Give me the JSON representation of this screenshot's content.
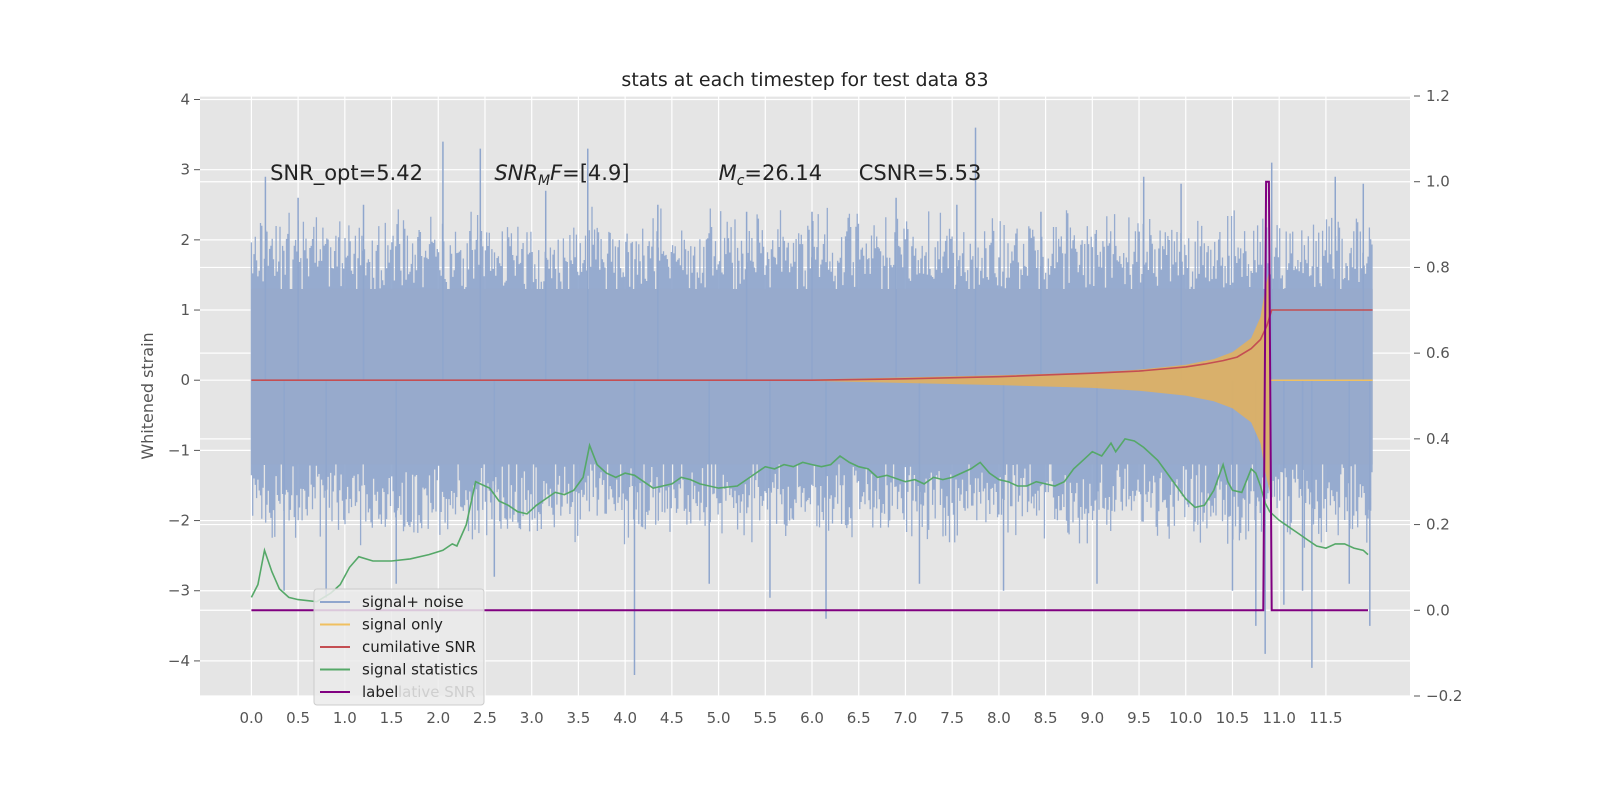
{
  "chart_data": {
    "type": "line",
    "title": "stats at each timestep for test data 83",
    "ylabel": "Whitened strain",
    "xlabel": "",
    "xlim": [
      -0.55,
      12.4
    ],
    "ylim": [
      -4.5,
      4.05
    ],
    "y2lim": [
      -0.2,
      1.2
    ],
    "grid": true,
    "x_ticks": [
      "0.0",
      "0.5",
      "1.0",
      "1.5",
      "2.0",
      "2.5",
      "3.0",
      "3.5",
      "4.0",
      "4.5",
      "5.0",
      "5.5",
      "6.0",
      "6.5",
      "7.0",
      "7.5",
      "8.0",
      "8.5",
      "9.0",
      "9.5",
      "10.0",
      "10.5",
      "11.0",
      "11.5"
    ],
    "y_ticks": [
      "4",
      "3",
      "2",
      "1",
      "0",
      "−1",
      "−2",
      "−3",
      "−4"
    ],
    "y2_ticks": [
      "1.2",
      "1.0",
      "0.8",
      "0.6",
      "0.4",
      "0.2",
      "0.0",
      "−0.2"
    ],
    "annotations": [
      {
        "text": "SNR_opt=5.42",
        "x": 0.2,
        "y": 2.85
      },
      {
        "main": "SNR",
        "sub": "M",
        "tail": "F=[4.9]",
        "x": 2.6,
        "y": 2.85
      },
      {
        "main": "M",
        "sub": "c",
        "tail": "=26.14",
        "x": 5.0,
        "y": 2.85
      },
      {
        "text": "CSNR=5.53",
        "x": 6.5,
        "y": 2.85
      }
    ],
    "legend": {
      "position": "lower-left",
      "entries": [
        {
          "label": "signal+ noise",
          "color": "#8fa6cd"
        },
        {
          "label": "signal only",
          "color": "#f0c060"
        },
        {
          "label": "cumilative SNR",
          "color": "#c44e52"
        },
        {
          "label": "signal statistics",
          "color": "#55a868"
        },
        {
          "label": "label",
          "color": "#800080"
        }
      ],
      "overlap_text": "lative SNR"
    },
    "series": [
      {
        "name": "signal+ noise",
        "axis": "left",
        "x_range": [
          0.0,
          12.0
        ],
        "band_typical": [
          -2.1,
          2.2
        ],
        "spike_x": [
          0.15,
          0.35,
          0.5,
          0.8,
          1.2,
          1.55,
          2.05,
          2.45,
          2.6,
          3.15,
          3.6,
          4.1,
          4.35,
          4.9,
          5.3,
          5.55,
          6.0,
          6.15,
          6.9,
          7.15,
          7.55,
          7.75,
          8.05,
          8.45,
          9.05,
          9.55,
          9.95,
          10.5,
          10.75,
          10.85,
          10.92,
          11.05,
          11.25,
          11.35,
          11.6,
          11.75,
          11.9,
          11.97
        ],
        "spike_y": [
          2.9,
          -3.0,
          2.6,
          -3.1,
          2.5,
          -2.9,
          3.4,
          3.3,
          -2.8,
          2.7,
          3.3,
          -4.2,
          2.5,
          -2.9,
          2.4,
          -3.1,
          2.4,
          -3.4,
          2.6,
          -2.9,
          2.5,
          3.6,
          -3.0,
          2.4,
          -2.9,
          2.9,
          2.8,
          -3.0,
          -3.5,
          -3.9,
          3.1,
          -3.2,
          -3.0,
          -4.1,
          2.9,
          -2.9,
          2.8,
          -3.5
        ]
      },
      {
        "name": "signal only",
        "axis": "left",
        "x": [
          6.0,
          7.0,
          8.0,
          9.0,
          9.5,
          10.0,
          10.3,
          10.5,
          10.7,
          10.8,
          10.85,
          10.9
        ],
        "envelope": [
          0.01,
          0.04,
          0.07,
          0.11,
          0.15,
          0.22,
          0.3,
          0.4,
          0.6,
          0.9,
          1.3,
          1.6
        ]
      },
      {
        "name": "cumilative SNR",
        "axis": "left",
        "x": [
          0.0,
          6.0,
          7.0,
          8.0,
          9.0,
          9.5,
          10.0,
          10.2,
          10.4,
          10.55,
          10.7,
          10.8,
          10.87,
          10.92,
          11.0,
          11.5,
          12.0
        ],
        "y": [
          0.0,
          0.0,
          0.02,
          0.05,
          0.1,
          0.13,
          0.19,
          0.23,
          0.28,
          0.33,
          0.45,
          0.58,
          0.78,
          1.0,
          1.0,
          1.0,
          1.0
        ]
      },
      {
        "name": "signal statistics",
        "axis": "right",
        "x": [
          0.0,
          0.07,
          0.14,
          0.22,
          0.3,
          0.4,
          0.5,
          0.7,
          0.85,
          0.95,
          1.05,
          1.15,
          1.3,
          1.5,
          1.7,
          1.9,
          2.05,
          2.15,
          2.2,
          2.3,
          2.4,
          2.45,
          2.55,
          2.65,
          2.75,
          2.85,
          2.95,
          3.05,
          3.15,
          3.25,
          3.35,
          3.45,
          3.55,
          3.62,
          3.7,
          3.8,
          3.9,
          4.0,
          4.1,
          4.2,
          4.3,
          4.4,
          4.5,
          4.6,
          4.7,
          4.8,
          5.0,
          5.2,
          5.4,
          5.5,
          5.6,
          5.7,
          5.8,
          5.9,
          6.0,
          6.1,
          6.2,
          6.3,
          6.4,
          6.5,
          6.6,
          6.7,
          6.8,
          7.0,
          7.1,
          7.2,
          7.3,
          7.4,
          7.5,
          7.6,
          7.7,
          7.8,
          7.9,
          8.0,
          8.1,
          8.2,
          8.3,
          8.4,
          8.5,
          8.6,
          8.7,
          8.8,
          8.9,
          9.0,
          9.1,
          9.2,
          9.25,
          9.35,
          9.45,
          9.55,
          9.7,
          9.8,
          9.9,
          10.0,
          10.1,
          10.2,
          10.3,
          10.4,
          10.45,
          10.5,
          10.6,
          10.7,
          10.75,
          10.8,
          10.85,
          10.9,
          11.0,
          11.1,
          11.2,
          11.3,
          11.4,
          11.5,
          11.6,
          11.7,
          11.8,
          11.9,
          11.95
        ],
        "y": [
          0.03,
          0.06,
          0.14,
          0.09,
          0.05,
          0.03,
          0.025,
          0.02,
          0.04,
          0.06,
          0.1,
          0.125,
          0.115,
          0.115,
          0.12,
          0.13,
          0.14,
          0.155,
          0.15,
          0.2,
          0.3,
          0.295,
          0.285,
          0.255,
          0.245,
          0.23,
          0.225,
          0.245,
          0.26,
          0.275,
          0.27,
          0.28,
          0.31,
          0.385,
          0.34,
          0.32,
          0.31,
          0.32,
          0.315,
          0.3,
          0.285,
          0.29,
          0.295,
          0.31,
          0.305,
          0.295,
          0.285,
          0.29,
          0.32,
          0.335,
          0.33,
          0.34,
          0.335,
          0.345,
          0.34,
          0.335,
          0.34,
          0.36,
          0.345,
          0.335,
          0.33,
          0.31,
          0.315,
          0.3,
          0.305,
          0.295,
          0.31,
          0.305,
          0.31,
          0.32,
          0.33,
          0.345,
          0.32,
          0.305,
          0.3,
          0.29,
          0.29,
          0.3,
          0.295,
          0.29,
          0.3,
          0.33,
          0.35,
          0.37,
          0.36,
          0.39,
          0.37,
          0.4,
          0.395,
          0.38,
          0.35,
          0.32,
          0.29,
          0.26,
          0.24,
          0.245,
          0.28,
          0.34,
          0.3,
          0.28,
          0.275,
          0.33,
          0.32,
          0.29,
          0.25,
          0.23,
          0.21,
          0.195,
          0.18,
          0.165,
          0.15,
          0.145,
          0.155,
          0.155,
          0.145,
          0.14,
          0.13
        ]
      },
      {
        "name": "label",
        "axis": "right",
        "x": [
          0.0,
          10.83,
          10.86,
          10.89,
          10.92,
          11.95
        ],
        "y": [
          0.0,
          0.0,
          1.0,
          1.0,
          0.0,
          0.0
        ]
      }
    ]
  }
}
